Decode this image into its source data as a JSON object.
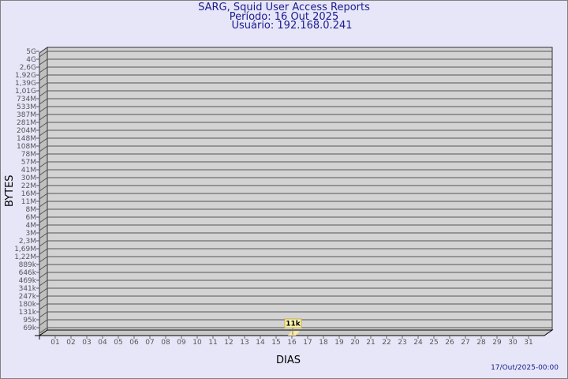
{
  "chart_data": {
    "type": "bar",
    "title": "SARG, Squid User Access Reports",
    "subtitle": [
      "Período: 16 Out 2025",
      "Usuário: 192.168.0.241"
    ],
    "xlabel": "DIAS",
    "ylabel": "BYTES",
    "y_scale": "log",
    "y_tick_labels": [
      "5G",
      "4G",
      "2,6G",
      "1,92G",
      "1,39G",
      "1,01G",
      "734M",
      "533M",
      "387M",
      "281M",
      "204M",
      "148M",
      "108M",
      "78M",
      "57M",
      "41M",
      "30M",
      "22M",
      "16M",
      "11M",
      "8M",
      "6M",
      "4M",
      "3M",
      "2,3M",
      "1,69M",
      "1,22M",
      "889k",
      "646k",
      "469k",
      "341k",
      "247k",
      "180k",
      "131k",
      "95k",
      "69k"
    ],
    "categories": [
      "01",
      "02",
      "03",
      "04",
      "05",
      "06",
      "07",
      "08",
      "09",
      "10",
      "11",
      "12",
      "13",
      "14",
      "15",
      "16",
      "17",
      "18",
      "19",
      "20",
      "21",
      "22",
      "23",
      "24",
      "25",
      "26",
      "27",
      "28",
      "29",
      "30",
      "31"
    ],
    "bars": [
      {
        "category": "16",
        "value": 11000,
        "label": "11k"
      }
    ],
    "grid": true,
    "colors": {
      "wall": "#d3d3d3",
      "bar": "#fde9a0",
      "label_bg": "#fbf5b4",
      "title": "#1a1a90"
    }
  },
  "footer": {
    "timestamp": "17/Out/2025-00:00"
  }
}
